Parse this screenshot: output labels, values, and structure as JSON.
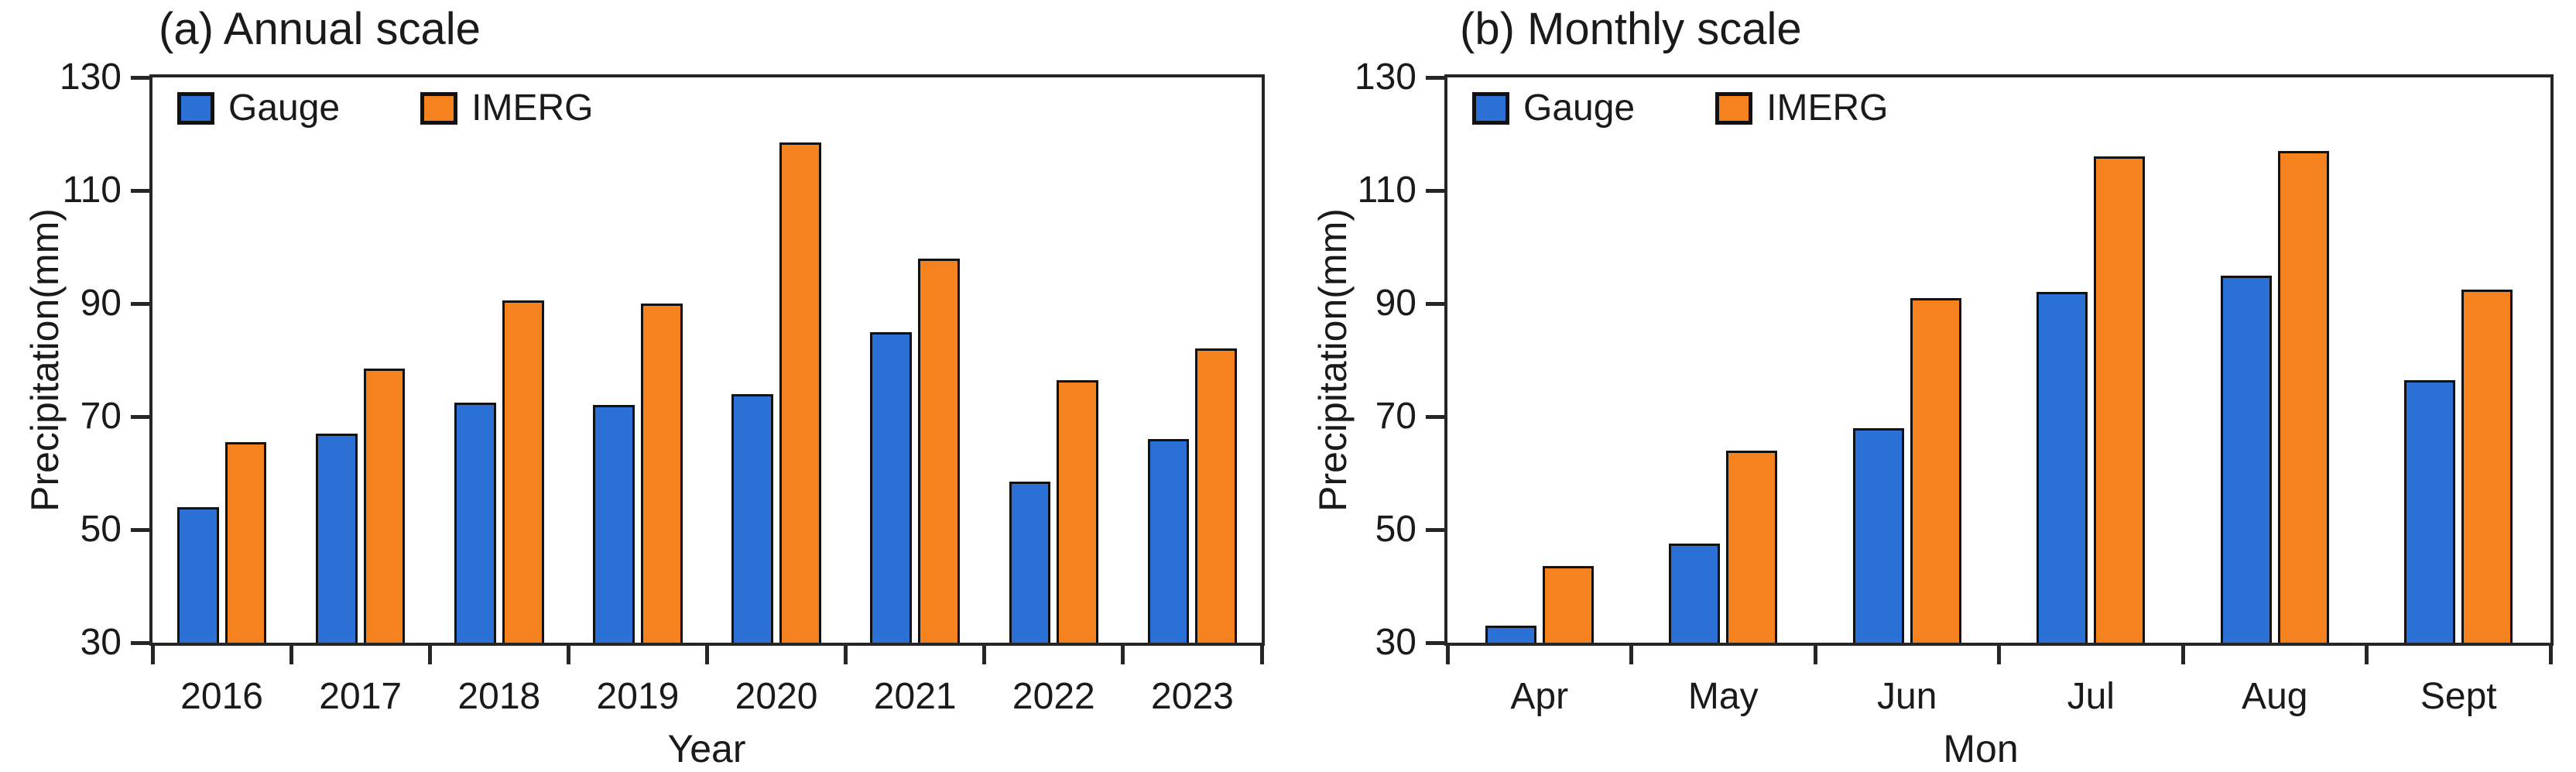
{
  "figure": {
    "background_color": "#ffffff",
    "text_color": "#1a1a1a",
    "axis_color": "#262626"
  },
  "chart_data": [
    {
      "type": "bar",
      "panel": "a",
      "title": "(a) Annual scale",
      "xlabel": "Year",
      "ylabel": "Precipitation(mm)",
      "categories": [
        "2016",
        "2017",
        "2018",
        "2019",
        "2020",
        "2021",
        "2022",
        "2023"
      ],
      "series": [
        {
          "name": "Gauge",
          "color": "#2B70D5",
          "values": [
            54,
            67,
            72.5,
            72,
            74,
            85,
            58.5,
            66
          ]
        },
        {
          "name": "IMERG",
          "color": "#F5821F",
          "values": [
            65.5,
            78.5,
            90.5,
            90,
            118.5,
            98,
            76.5,
            82
          ]
        }
      ],
      "ylim": [
        30,
        130
      ],
      "yticks": [
        130,
        110,
        90,
        70,
        50,
        30
      ],
      "grid": false,
      "legend_position": "top-left-inside",
      "bar_edge_color": "#111111"
    },
    {
      "type": "bar",
      "panel": "b",
      "title": "(b) Monthly scale",
      "xlabel": "Mon",
      "ylabel": "Precipitation(mm)",
      "categories": [
        "Apr",
        "May",
        "Jun",
        "Jul",
        "Aug",
        "Sept"
      ],
      "series": [
        {
          "name": "Gauge",
          "color": "#2B70D5",
          "values": [
            33,
            47.5,
            68,
            92,
            95,
            76.5
          ]
        },
        {
          "name": "IMERG",
          "color": "#F5821F",
          "values": [
            43.5,
            64,
            91,
            116,
            117,
            92.5
          ]
        }
      ],
      "ylim": [
        30,
        130
      ],
      "yticks": [
        130,
        110,
        90,
        70,
        50,
        30
      ],
      "grid": false,
      "legend_position": "top-left-inside",
      "bar_edge_color": "#111111"
    }
  ]
}
